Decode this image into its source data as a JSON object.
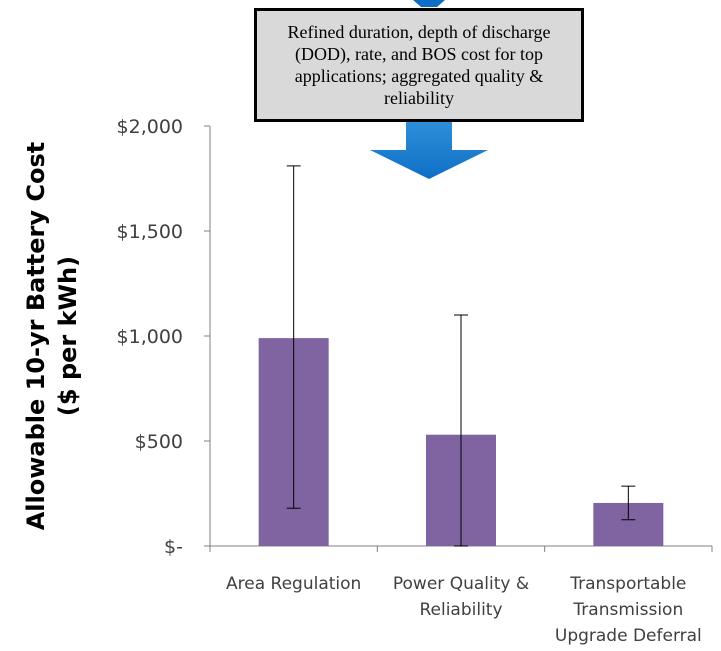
{
  "callout": {
    "text": "Refined duration, depth of discharge (DOD), rate, and BOS cost for top applications; aggregated quality & reliability"
  },
  "colors": {
    "bar": "#8064a2",
    "arrow": "#0f6fc6",
    "axis": "#808080",
    "error_bar": "#000000"
  },
  "chart_data": {
    "type": "bar",
    "ylabel_lines": [
      "Allowable 10-yr Battery Cost",
      "($ per kWh)"
    ],
    "ylim": [
      0,
      2000
    ],
    "yticks": [
      {
        "value": 0,
        "label": "$-"
      },
      {
        "value": 500,
        "label": "$500"
      },
      {
        "value": 1000,
        "label": "$1,000"
      },
      {
        "value": 1500,
        "label": "$1,500"
      },
      {
        "value": 2000,
        "label": "$2,000"
      }
    ],
    "grid": false,
    "categories": [
      {
        "lines": [
          "Area Regulation"
        ]
      },
      {
        "lines": [
          "Power Quality &",
          "Reliability"
        ]
      },
      {
        "lines": [
          "Transportable",
          "Transmission",
          "Upgrade Deferral"
        ]
      }
    ],
    "values": [
      990,
      530,
      205
    ],
    "error_low": [
      180,
      0,
      125
    ],
    "error_high": [
      1810,
      1100,
      285
    ]
  }
}
